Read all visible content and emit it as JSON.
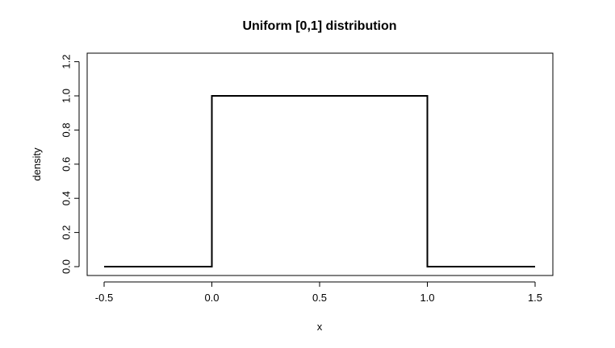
{
  "chart_data": {
    "type": "line",
    "title": "Uniform [0,1] distribution",
    "xlabel": "x",
    "ylabel": "density",
    "xlim": [
      -0.5,
      1.5
    ],
    "ylim": [
      0,
      1.2
    ],
    "x_ticks": [
      -0.5,
      0.0,
      0.5,
      1.0,
      1.5
    ],
    "x_tick_labels": [
      "-0.5",
      "0.0",
      "0.5",
      "1.0",
      "1.5"
    ],
    "y_ticks": [
      0.0,
      0.2,
      0.4,
      0.6,
      0.8,
      1.0,
      1.2
    ],
    "y_tick_labels": [
      "0.0",
      "0.2",
      "0.4",
      "0.6",
      "0.8",
      "1.0",
      "1.2"
    ],
    "grid": false,
    "series": [
      {
        "x": [
          -0.5,
          0.0,
          0.0,
          1.0,
          1.0,
          1.5
        ],
        "y": [
          0.0,
          0.0,
          1.0,
          1.0,
          0.0,
          0.0
        ],
        "color": "#000000"
      }
    ]
  }
}
